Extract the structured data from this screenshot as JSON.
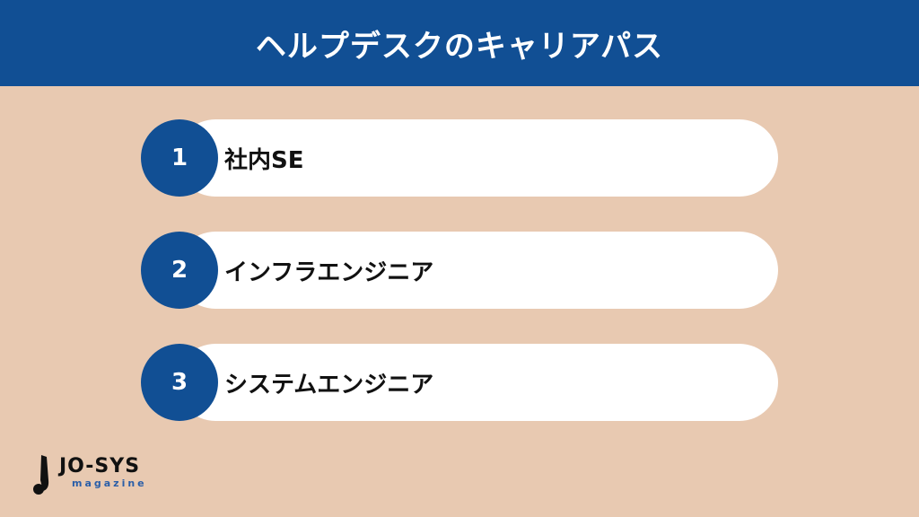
{
  "title": "ヘルプデスクのキャリアパス",
  "items": [
    {
      "number": "1",
      "label": "社内SE"
    },
    {
      "number": "2",
      "label": "インフラエンジニア"
    },
    {
      "number": "3",
      "label": "システムエンジニア"
    }
  ],
  "logo": {
    "main": "JO-SYS",
    "sub": "magazine"
  },
  "colors": {
    "accent": "#114f94",
    "background": "#e8c9b1",
    "card": "#ffffff"
  }
}
